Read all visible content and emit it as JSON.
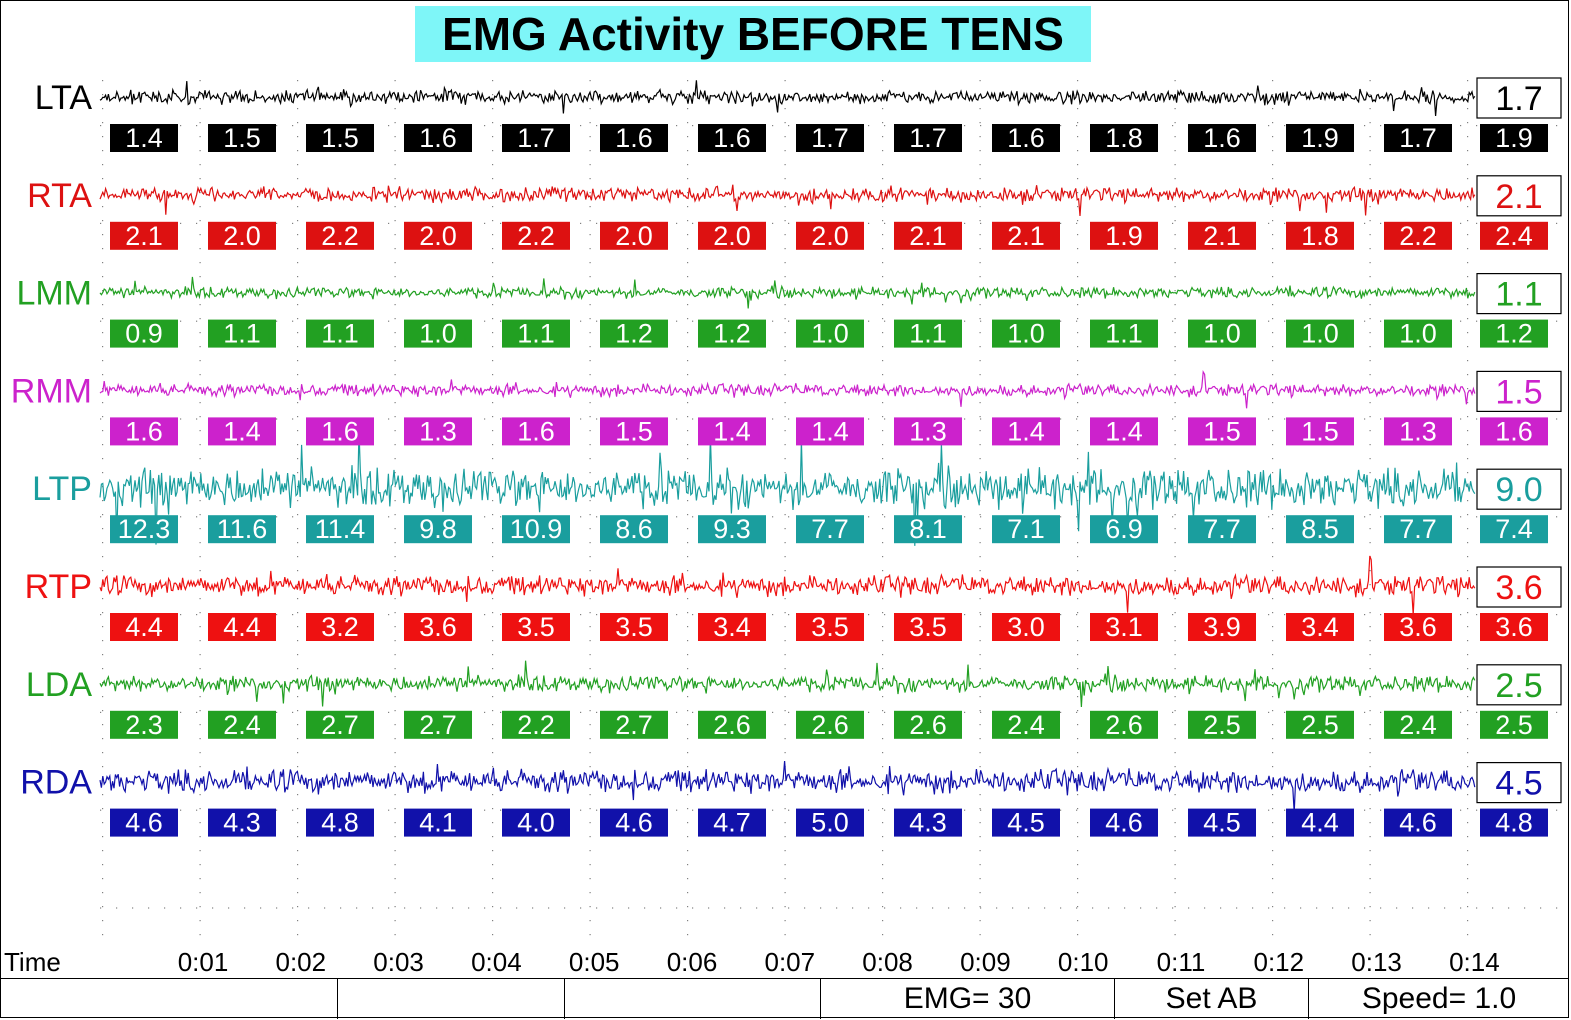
{
  "title": "EMG Activity BEFORE TENS",
  "chart_data": {
    "type": "line",
    "title": "EMG Activity BEFORE TENS",
    "xlabel": "Time",
    "x_ticks": [
      "0:01",
      "0:02",
      "0:03",
      "0:04",
      "0:05",
      "0:06",
      "0:07",
      "0:08",
      "0:09",
      "0:10",
      "0:11",
      "0:12",
      "0:13",
      "0:14"
    ],
    "series": [
      {
        "name": "LTA",
        "color": "#000000",
        "average": "1.7",
        "segment_values": [
          "1.4",
          "1.5",
          "1.5",
          "1.6",
          "1.7",
          "1.6",
          "1.6",
          "1.7",
          "1.7",
          "1.6",
          "1.8",
          "1.6",
          "1.9",
          "1.7",
          "1.9"
        ]
      },
      {
        "name": "RTA",
        "color": "#dd1111",
        "average": "2.1",
        "segment_values": [
          "2.1",
          "2.0",
          "2.2",
          "2.0",
          "2.2",
          "2.0",
          "2.0",
          "2.0",
          "2.1",
          "2.1",
          "1.9",
          "2.1",
          "1.8",
          "2.2",
          "2.4"
        ]
      },
      {
        "name": "LMM",
        "color": "#22a022",
        "average": "1.1",
        "segment_values": [
          "0.9",
          "1.1",
          "1.1",
          "1.0",
          "1.1",
          "1.2",
          "1.2",
          "1.0",
          "1.1",
          "1.0",
          "1.1",
          "1.0",
          "1.0",
          "1.0",
          "1.2"
        ]
      },
      {
        "name": "RMM",
        "color": "#cc22cc",
        "average": "1.5",
        "segment_values": [
          "1.6",
          "1.4",
          "1.6",
          "1.3",
          "1.6",
          "1.5",
          "1.4",
          "1.4",
          "1.3",
          "1.4",
          "1.4",
          "1.5",
          "1.5",
          "1.3",
          "1.6"
        ]
      },
      {
        "name": "LTP",
        "color": "#1a9e9e",
        "average": "9.0",
        "segment_values": [
          "12.3",
          "11.6",
          "11.4",
          "9.8",
          "10.9",
          "8.6",
          "9.3",
          "7.7",
          "8.1",
          "7.1",
          "6.9",
          "7.7",
          "8.5",
          "7.7",
          "7.4"
        ]
      },
      {
        "name": "RTP",
        "color": "#ee1111",
        "average": "3.6",
        "segment_values": [
          "4.4",
          "4.4",
          "3.2",
          "3.6",
          "3.5",
          "3.5",
          "3.4",
          "3.5",
          "3.5",
          "3.0",
          "3.1",
          "3.9",
          "3.4",
          "3.6",
          "3.6"
        ]
      },
      {
        "name": "LDA",
        "color": "#22a022",
        "average": "2.5",
        "segment_values": [
          "2.3",
          "2.4",
          "2.7",
          "2.7",
          "2.2",
          "2.7",
          "2.6",
          "2.6",
          "2.6",
          "2.4",
          "2.6",
          "2.5",
          "2.5",
          "2.4",
          "2.5"
        ]
      },
      {
        "name": "RDA",
        "color": "#1111aa",
        "average": "4.5",
        "segment_values": [
          "4.6",
          "4.3",
          "4.8",
          "4.1",
          "4.0",
          "4.6",
          "4.7",
          "5.0",
          "4.3",
          "4.5",
          "4.6",
          "4.5",
          "4.4",
          "4.6",
          "4.8"
        ]
      }
    ]
  },
  "status_bar": {
    "cells": [
      "",
      "",
      "EMG= 30",
      "Set AB",
      "Speed= 1.0"
    ]
  }
}
